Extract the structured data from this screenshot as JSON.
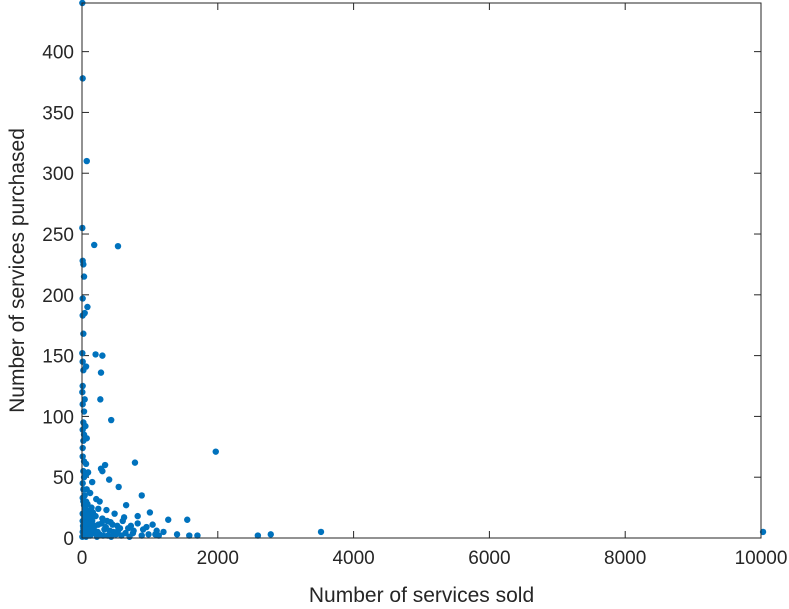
{
  "chart_data": {
    "type": "scatter",
    "xlabel": "Number of services sold",
    "ylabel": "Number of services purchased",
    "xlim": [
      0,
      10000
    ],
    "ylim": [
      0,
      440
    ],
    "xticks": [
      0,
      2000,
      4000,
      6000,
      8000,
      10000
    ],
    "yticks": [
      0,
      50,
      100,
      150,
      200,
      250,
      300,
      350,
      400
    ],
    "grid": false,
    "marker_color": "#0072BD",
    "series": [
      {
        "points": [
          [
            5,
            440
          ],
          [
            10,
            378
          ],
          [
            70,
            310
          ],
          [
            5,
            255
          ],
          [
            180,
            241
          ],
          [
            530,
            240
          ],
          [
            10,
            228
          ],
          [
            20,
            225
          ],
          [
            30,
            215
          ],
          [
            10,
            197
          ],
          [
            80,
            190
          ],
          [
            40,
            185
          ],
          [
            10,
            183
          ],
          [
            20,
            168
          ],
          [
            5,
            152
          ],
          [
            200,
            151
          ],
          [
            300,
            150
          ],
          [
            10,
            145
          ],
          [
            60,
            141
          ],
          [
            20,
            138
          ],
          [
            280,
            136
          ],
          [
            10,
            125
          ],
          [
            5,
            120
          ],
          [
            40,
            114
          ],
          [
            270,
            114
          ],
          [
            10,
            110
          ],
          [
            30,
            104
          ],
          [
            430,
            97
          ],
          [
            20,
            95
          ],
          [
            50,
            92
          ],
          [
            10,
            89
          ],
          [
            30,
            85
          ],
          [
            70,
            82
          ],
          [
            20,
            80
          ],
          [
            10,
            74
          ],
          [
            1970,
            71
          ],
          [
            10,
            67
          ],
          [
            30,
            63
          ],
          [
            60,
            61
          ],
          [
            780,
            62
          ],
          [
            340,
            60
          ],
          [
            280,
            57
          ],
          [
            300,
            55
          ],
          [
            20,
            55
          ],
          [
            90,
            54
          ],
          [
            60,
            52
          ],
          [
            30,
            50
          ],
          [
            400,
            48
          ],
          [
            150,
            46
          ],
          [
            10,
            45
          ],
          [
            540,
            42
          ],
          [
            70,
            40
          ],
          [
            20,
            40
          ],
          [
            120,
            37
          ],
          [
            880,
            35
          ],
          [
            40,
            35
          ],
          [
            10,
            33
          ],
          [
            210,
            32
          ],
          [
            60,
            30
          ],
          [
            260,
            30
          ],
          [
            650,
            27
          ],
          [
            30,
            27
          ],
          [
            140,
            25
          ],
          [
            360,
            23
          ],
          [
            90,
            22
          ],
          [
            1000,
            21
          ],
          [
            480,
            20
          ],
          [
            10,
            20
          ],
          [
            200,
            18
          ],
          [
            620,
            17
          ],
          [
            300,
            16
          ],
          [
            60,
            16
          ],
          [
            1270,
            15
          ],
          [
            1550,
            15
          ],
          [
            150,
            14
          ],
          [
            420,
            13
          ],
          [
            30,
            13
          ],
          [
            820,
            12
          ],
          [
            240,
            11
          ],
          [
            100,
            10
          ],
          [
            520,
            10
          ],
          [
            950,
            9
          ],
          [
            680,
            8
          ],
          [
            20,
            8
          ],
          [
            330,
            7
          ],
          [
            1100,
            6
          ],
          [
            180,
            6
          ],
          [
            460,
            5
          ],
          [
            750,
            4
          ],
          [
            3520,
            5
          ],
          [
            2780,
            3
          ],
          [
            1580,
            2
          ],
          [
            1700,
            2
          ],
          [
            2590,
            2
          ],
          [
            1130,
            2
          ],
          [
            10030,
            5
          ],
          [
            40,
            3
          ],
          [
            260,
            3
          ],
          [
            580,
            2
          ],
          [
            880,
            2
          ],
          [
            1080,
            3
          ],
          [
            120,
            2
          ],
          [
            380,
            2
          ],
          [
            5,
            1
          ],
          [
            60,
            1
          ],
          [
            160,
            4
          ],
          [
            220,
            1
          ],
          [
            430,
            1
          ],
          [
            700,
            1
          ],
          [
            30,
            6
          ],
          [
            90,
            8
          ],
          [
            140,
            9
          ],
          [
            70,
            4
          ],
          [
            40,
            12
          ],
          [
            10,
            14
          ],
          [
            110,
            18
          ],
          [
            50,
            24
          ],
          [
            80,
            28
          ],
          [
            20,
            30
          ],
          [
            160,
            21
          ],
          [
            240,
            24
          ],
          [
            350,
            9
          ],
          [
            530,
            6
          ],
          [
            980,
            3
          ],
          [
            1400,
            3
          ],
          [
            10,
            5
          ],
          [
            15,
            10
          ],
          [
            25,
            2
          ],
          [
            35,
            17
          ],
          [
            45,
            6
          ],
          [
            55,
            11
          ],
          [
            65,
            19
          ],
          [
            75,
            3
          ],
          [
            85,
            15
          ],
          [
            95,
            5
          ],
          [
            105,
            12
          ],
          [
            115,
            7
          ],
          [
            125,
            3
          ],
          [
            135,
            16
          ],
          [
            145,
            6
          ],
          [
            190,
            10
          ],
          [
            230,
            5
          ],
          [
            290,
            12
          ],
          [
            310,
            2
          ],
          [
            370,
            14
          ],
          [
            410,
            6
          ],
          [
            450,
            11
          ],
          [
            500,
            3
          ],
          [
            560,
            8
          ],
          [
            600,
            14
          ],
          [
            640,
            4
          ],
          [
            720,
            10
          ],
          [
            760,
            6
          ],
          [
            820,
            18
          ],
          [
            900,
            7
          ],
          [
            1040,
            11
          ],
          [
            1200,
            5
          ]
        ]
      }
    ]
  }
}
